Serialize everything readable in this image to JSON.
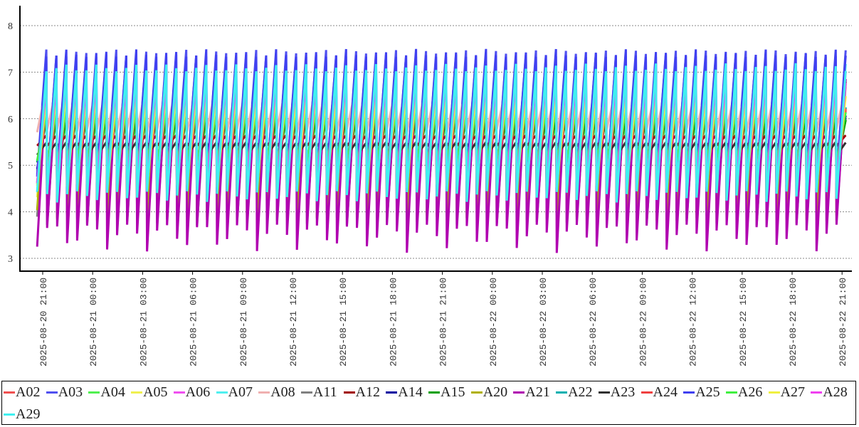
{
  "chart_data": {
    "type": "line",
    "title": "",
    "xlabel": "",
    "ylabel": "",
    "ylim": [
      2.85,
      8.4
    ],
    "yticks": [
      "3",
      "4",
      "5",
      "6",
      "7",
      "8"
    ],
    "grid": "horizontal dashed",
    "legend_placement": "bottom",
    "x_range_minutes_from_2025-08-20_21:00": [
      -20,
      2875
    ],
    "xticks": [
      "2025-08-20 21:00",
      "2025-08-21 00:00",
      "2025-08-21 03:00",
      "2025-08-21 06:00",
      "2025-08-21 09:00",
      "2025-08-21 12:00",
      "2025-08-21 15:00",
      "2025-08-21 18:00",
      "2025-08-21 21:00",
      "2025-08-22 00:00",
      "2025-08-22 03:00",
      "2025-08-22 06:00",
      "2025-08-22 09:00",
      "2025-08-22 12:00",
      "2025-08-22 15:00",
      "2025-08-22 18:00",
      "2025-08-22 21:00"
    ],
    "cycle_period_minutes": 36,
    "series": [
      {
        "name": "A02",
        "color": "#f05050",
        "min": 4.6,
        "max": 6.2
      },
      {
        "name": "A03",
        "color": "#5050f0",
        "min": 4.6,
        "max": 7.5
      },
      {
        "name": "A04",
        "color": "#50f050",
        "min": 4.8,
        "max": 6.0
      },
      {
        "name": "A05",
        "color": "#f0f050",
        "min": 4.3,
        "max": 6.8
      },
      {
        "name": "A06",
        "color": "#f050f0",
        "min": 4.6,
        "max": 7.0
      },
      {
        "name": "A07",
        "color": "#50f0f0",
        "min": 4.2,
        "max": 7.2
      },
      {
        "name": "A08",
        "color": "#f0b0b0",
        "min": 5.7,
        "max": 6.7
      },
      {
        "name": "A11",
        "color": "#808080",
        "min": 3.7,
        "max": 6.8
      },
      {
        "name": "A12",
        "color": "#a00000",
        "min": 5.4,
        "max": 5.65
      },
      {
        "name": "A14",
        "color": "#0000a0",
        "min": 4.9,
        "max": 6.1
      },
      {
        "name": "A15",
        "color": "#00a000",
        "min": 5.0,
        "max": 6.0
      },
      {
        "name": "A20",
        "color": "#b0b000",
        "min": 3.8,
        "max": 6.9
      },
      {
        "name": "A21",
        "color": "#b000b0",
        "min": 3.1,
        "max": 7.0
      },
      {
        "name": "A22",
        "color": "#00b0b0",
        "min": 5.0,
        "max": 6.3
      },
      {
        "name": "A23",
        "color": "#303030",
        "min": 5.2,
        "max": 5.5
      },
      {
        "name": "A24",
        "color": "#f04040",
        "min": 4.6,
        "max": 6.3
      },
      {
        "name": "A25",
        "color": "#4040f0",
        "min": 4.6,
        "max": 7.5
      },
      {
        "name": "A26",
        "color": "#40f040",
        "min": 5.0,
        "max": 6.2
      },
      {
        "name": "A27",
        "color": "#f0f040",
        "min": 4.5,
        "max": 6.6
      },
      {
        "name": "A28",
        "color": "#f040f0",
        "min": 4.5,
        "max": 6.9
      },
      {
        "name": "A29",
        "color": "#40f0f0",
        "min": 4.2,
        "max": 7.2
      }
    ]
  }
}
